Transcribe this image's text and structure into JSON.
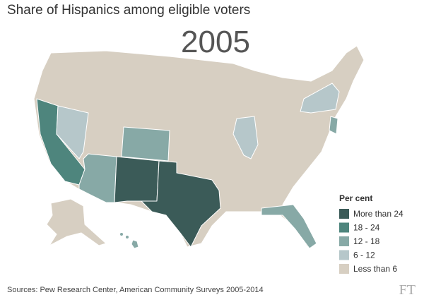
{
  "title": "Share of Hispanics among eligible voters",
  "year": "2005",
  "legend": {
    "title": "Per cent",
    "items": [
      {
        "label": "More than 24",
        "color": "#3b5b58"
      },
      {
        "label": "18 - 24",
        "color": "#4e857d"
      },
      {
        "label": "12 - 18",
        "color": "#87a9a6"
      },
      {
        "label": "6 - 12",
        "color": "#b6c7ca"
      },
      {
        "label": "Less than 6",
        "color": "#d7cfc2"
      }
    ]
  },
  "source": "Sources: Pew Research Center, American Community Surveys 2005-2014",
  "logo": "FT"
}
